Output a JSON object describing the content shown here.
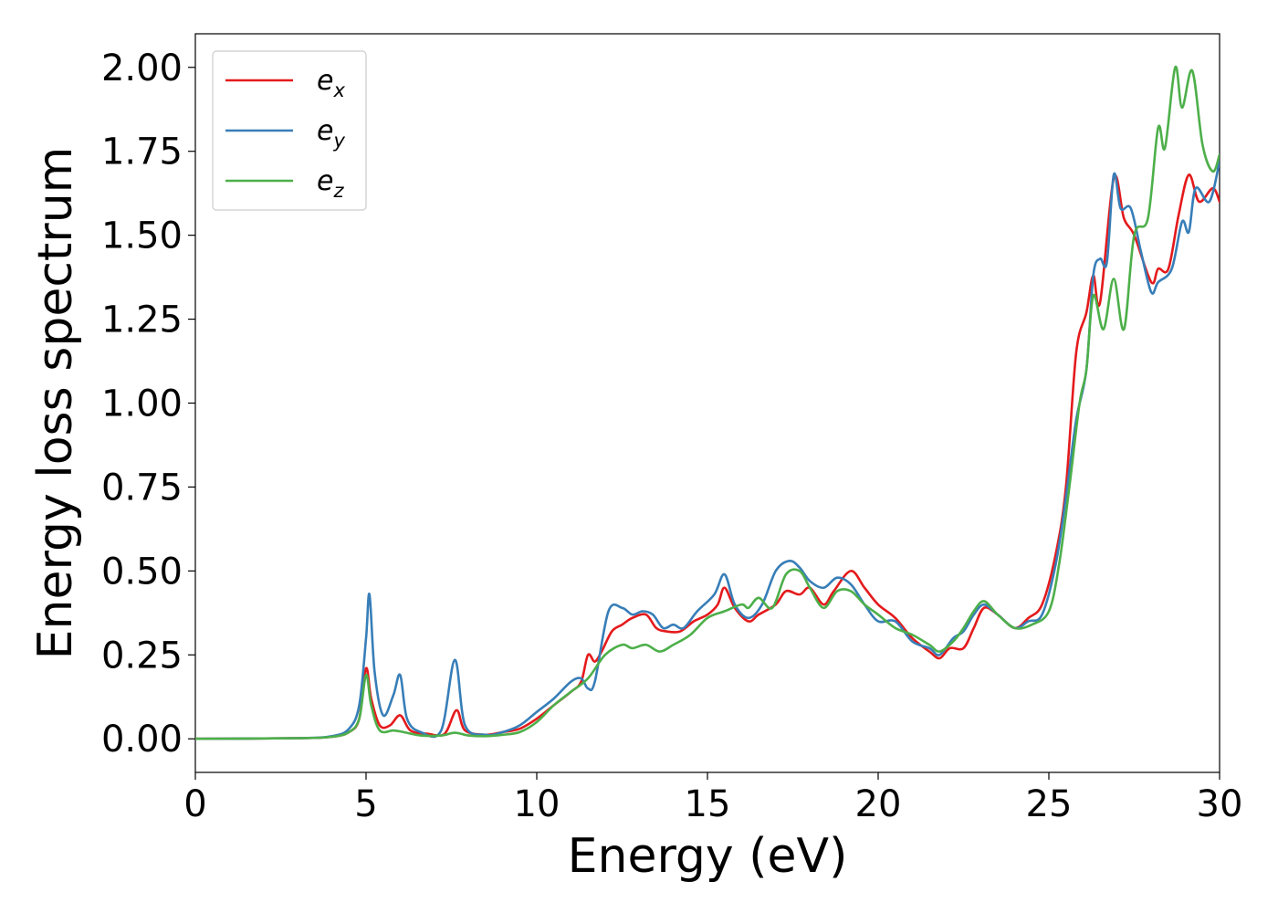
{
  "chart_data": {
    "type": "line",
    "xlabel": "Energy (eV)",
    "ylabel": "Energy loss spectrum",
    "xlim": [
      0,
      30
    ],
    "ylim": [
      -0.1,
      2.1
    ],
    "grid": false,
    "legend_position": "upper-left",
    "xticks": [
      0,
      5,
      10,
      15,
      20,
      25,
      30
    ],
    "xtick_labels": [
      "0",
      "5",
      "10",
      "15",
      "20",
      "25",
      "30"
    ],
    "yticks": [
      0,
      0.25,
      0.5,
      0.75,
      1.0,
      1.25,
      1.5,
      1.75,
      2.0
    ],
    "ytick_labels": [
      "0.00",
      "0.25",
      "0.50",
      "0.75",
      "1.00",
      "1.25",
      "1.50",
      "1.75",
      "2.00"
    ],
    "series": [
      {
        "name": "e",
        "subscript": "x",
        "color": "#e41a1c",
        "points": [
          [
            0,
            0
          ],
          [
            3,
            0.002
          ],
          [
            4,
            0.006
          ],
          [
            4.5,
            0.02
          ],
          [
            4.8,
            0.06
          ],
          [
            5.0,
            0.21
          ],
          [
            5.15,
            0.12
          ],
          [
            5.4,
            0.04
          ],
          [
            5.7,
            0.04
          ],
          [
            6.0,
            0.07
          ],
          [
            6.3,
            0.025
          ],
          [
            6.8,
            0.015
          ],
          [
            7.3,
            0.015
          ],
          [
            7.65,
            0.085
          ],
          [
            7.9,
            0.025
          ],
          [
            8.5,
            0.012
          ],
          [
            9,
            0.02
          ],
          [
            9.5,
            0.03
          ],
          [
            10,
            0.06
          ],
          [
            10.5,
            0.1
          ],
          [
            11,
            0.14
          ],
          [
            11.3,
            0.17
          ],
          [
            11.5,
            0.25
          ],
          [
            11.7,
            0.23
          ],
          [
            11.9,
            0.26
          ],
          [
            12.2,
            0.32
          ],
          [
            12.5,
            0.34
          ],
          [
            12.8,
            0.36
          ],
          [
            13.2,
            0.37
          ],
          [
            13.5,
            0.33
          ],
          [
            13.8,
            0.32
          ],
          [
            14.2,
            0.32
          ],
          [
            14.6,
            0.35
          ],
          [
            15.0,
            0.37
          ],
          [
            15.3,
            0.4
          ],
          [
            15.5,
            0.45
          ],
          [
            15.8,
            0.39
          ],
          [
            16.2,
            0.35
          ],
          [
            16.5,
            0.37
          ],
          [
            17.0,
            0.4
          ],
          [
            17.3,
            0.44
          ],
          [
            17.7,
            0.43
          ],
          [
            18.0,
            0.45
          ],
          [
            18.4,
            0.4
          ],
          [
            18.7,
            0.44
          ],
          [
            19.2,
            0.5
          ],
          [
            19.6,
            0.45
          ],
          [
            20.0,
            0.4
          ],
          [
            20.5,
            0.36
          ],
          [
            21.0,
            0.3
          ],
          [
            21.5,
            0.26
          ],
          [
            21.8,
            0.24
          ],
          [
            22.1,
            0.27
          ],
          [
            22.5,
            0.27
          ],
          [
            22.8,
            0.33
          ],
          [
            23.1,
            0.39
          ],
          [
            23.5,
            0.37
          ],
          [
            24.0,
            0.33
          ],
          [
            24.4,
            0.36
          ],
          [
            24.8,
            0.4
          ],
          [
            25.2,
            0.55
          ],
          [
            25.5,
            0.75
          ],
          [
            25.8,
            1.15
          ],
          [
            26.1,
            1.27
          ],
          [
            26.3,
            1.38
          ],
          [
            26.5,
            1.3
          ],
          [
            26.9,
            1.67
          ],
          [
            27.2,
            1.55
          ],
          [
            27.5,
            1.5
          ],
          [
            28.0,
            1.36
          ],
          [
            28.2,
            1.4
          ],
          [
            28.5,
            1.4
          ],
          [
            28.8,
            1.56
          ],
          [
            29.1,
            1.68
          ],
          [
            29.4,
            1.6
          ],
          [
            29.8,
            1.64
          ],
          [
            30,
            1.6
          ]
        ]
      },
      {
        "name": "e",
        "subscript": "y",
        "color": "#377eb8",
        "points": [
          [
            0,
            0
          ],
          [
            3,
            0.002
          ],
          [
            4,
            0.008
          ],
          [
            4.5,
            0.03
          ],
          [
            4.8,
            0.1
          ],
          [
            5.0,
            0.3
          ],
          [
            5.1,
            0.43
          ],
          [
            5.25,
            0.2
          ],
          [
            5.5,
            0.07
          ],
          [
            5.8,
            0.13
          ],
          [
            6.0,
            0.19
          ],
          [
            6.2,
            0.06
          ],
          [
            6.6,
            0.02
          ],
          [
            7.2,
            0.025
          ],
          [
            7.6,
            0.235
          ],
          [
            7.9,
            0.04
          ],
          [
            8.5,
            0.012
          ],
          [
            9,
            0.02
          ],
          [
            9.5,
            0.04
          ],
          [
            10,
            0.08
          ],
          [
            10.5,
            0.12
          ],
          [
            11,
            0.17
          ],
          [
            11.3,
            0.18
          ],
          [
            11.5,
            0.15
          ],
          [
            11.7,
            0.17
          ],
          [
            12.1,
            0.38
          ],
          [
            12.5,
            0.39
          ],
          [
            12.8,
            0.37
          ],
          [
            13.1,
            0.38
          ],
          [
            13.4,
            0.37
          ],
          [
            13.7,
            0.33
          ],
          [
            14.0,
            0.34
          ],
          [
            14.3,
            0.33
          ],
          [
            14.7,
            0.38
          ],
          [
            15.2,
            0.43
          ],
          [
            15.5,
            0.49
          ],
          [
            15.8,
            0.4
          ],
          [
            16.2,
            0.36
          ],
          [
            16.6,
            0.4
          ],
          [
            17.0,
            0.5
          ],
          [
            17.4,
            0.53
          ],
          [
            17.7,
            0.51
          ],
          [
            18.0,
            0.47
          ],
          [
            18.4,
            0.45
          ],
          [
            18.8,
            0.48
          ],
          [
            19.2,
            0.46
          ],
          [
            19.6,
            0.4
          ],
          [
            20.0,
            0.35
          ],
          [
            20.5,
            0.35
          ],
          [
            21.0,
            0.29
          ],
          [
            21.5,
            0.27
          ],
          [
            21.8,
            0.25
          ],
          [
            22.2,
            0.3
          ],
          [
            22.5,
            0.32
          ],
          [
            22.8,
            0.37
          ],
          [
            23.1,
            0.4
          ],
          [
            23.5,
            0.37
          ],
          [
            24.0,
            0.33
          ],
          [
            24.4,
            0.35
          ],
          [
            24.8,
            0.37
          ],
          [
            25.2,
            0.52
          ],
          [
            25.5,
            0.72
          ],
          [
            25.8,
            0.95
          ],
          [
            26.1,
            1.1
          ],
          [
            26.3,
            1.38
          ],
          [
            26.5,
            1.43
          ],
          [
            26.7,
            1.42
          ],
          [
            26.9,
            1.68
          ],
          [
            27.1,
            1.58
          ],
          [
            27.4,
            1.58
          ],
          [
            27.7,
            1.45
          ],
          [
            28.0,
            1.33
          ],
          [
            28.2,
            1.36
          ],
          [
            28.6,
            1.4
          ],
          [
            28.9,
            1.54
          ],
          [
            29.1,
            1.51
          ],
          [
            29.3,
            1.64
          ],
          [
            29.7,
            1.6
          ],
          [
            30,
            1.72
          ]
        ]
      },
      {
        "name": "e",
        "subscript": "z",
        "color": "#4daf4a",
        "points": [
          [
            0,
            0
          ],
          [
            3,
            0.002
          ],
          [
            4,
            0.006
          ],
          [
            4.5,
            0.02
          ],
          [
            4.8,
            0.06
          ],
          [
            5.0,
            0.19
          ],
          [
            5.15,
            0.1
          ],
          [
            5.4,
            0.025
          ],
          [
            5.8,
            0.025
          ],
          [
            6.1,
            0.02
          ],
          [
            6.6,
            0.01
          ],
          [
            7.2,
            0.01
          ],
          [
            7.6,
            0.018
          ],
          [
            8.0,
            0.01
          ],
          [
            8.5,
            0.008
          ],
          [
            9,
            0.012
          ],
          [
            9.5,
            0.02
          ],
          [
            10,
            0.05
          ],
          [
            10.5,
            0.1
          ],
          [
            11,
            0.14
          ],
          [
            11.5,
            0.18
          ],
          [
            12.0,
            0.25
          ],
          [
            12.5,
            0.28
          ],
          [
            12.8,
            0.27
          ],
          [
            13.2,
            0.28
          ],
          [
            13.6,
            0.26
          ],
          [
            14.0,
            0.28
          ],
          [
            14.5,
            0.31
          ],
          [
            15.0,
            0.36
          ],
          [
            15.5,
            0.38
          ],
          [
            16.0,
            0.4
          ],
          [
            16.2,
            0.39
          ],
          [
            16.5,
            0.42
          ],
          [
            16.9,
            0.39
          ],
          [
            17.3,
            0.49
          ],
          [
            17.7,
            0.5
          ],
          [
            18.0,
            0.45
          ],
          [
            18.4,
            0.39
          ],
          [
            18.8,
            0.44
          ],
          [
            19.2,
            0.44
          ],
          [
            19.6,
            0.4
          ],
          [
            20.0,
            0.37
          ],
          [
            20.5,
            0.33
          ],
          [
            21.0,
            0.31
          ],
          [
            21.5,
            0.28
          ],
          [
            21.8,
            0.26
          ],
          [
            22.2,
            0.29
          ],
          [
            22.5,
            0.33
          ],
          [
            22.8,
            0.38
          ],
          [
            23.1,
            0.41
          ],
          [
            23.5,
            0.37
          ],
          [
            24.0,
            0.33
          ],
          [
            24.5,
            0.34
          ],
          [
            25.0,
            0.38
          ],
          [
            25.3,
            0.52
          ],
          [
            25.6,
            0.75
          ],
          [
            25.9,
            1.0
          ],
          [
            26.1,
            1.1
          ],
          [
            26.3,
            1.32
          ],
          [
            26.6,
            1.22
          ],
          [
            26.9,
            1.37
          ],
          [
            27.2,
            1.22
          ],
          [
            27.5,
            1.5
          ],
          [
            27.9,
            1.55
          ],
          [
            28.2,
            1.82
          ],
          [
            28.4,
            1.76
          ],
          [
            28.7,
            2.0
          ],
          [
            28.9,
            1.88
          ],
          [
            29.2,
            1.99
          ],
          [
            29.5,
            1.77
          ],
          [
            29.8,
            1.69
          ],
          [
            30,
            1.74
          ]
        ]
      }
    ]
  }
}
